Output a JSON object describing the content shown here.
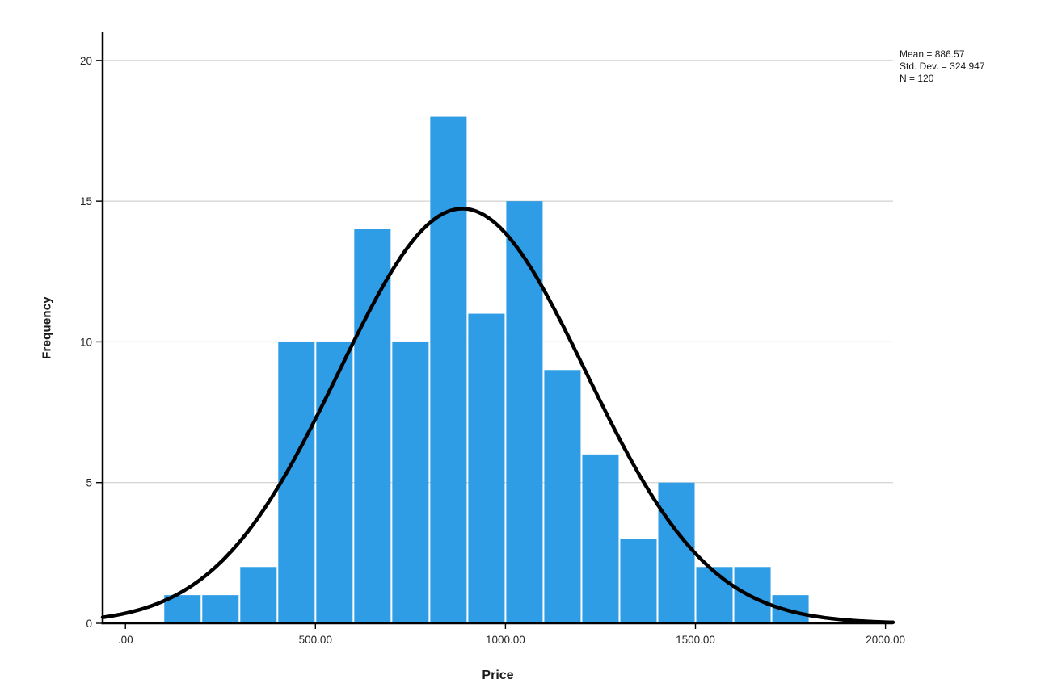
{
  "chart_data": {
    "type": "bar",
    "variant": "histogram-with-normal-curve",
    "title": "",
    "xlabel": "Price",
    "ylabel": "Frequency",
    "annotations": [
      "Mean = 886.57",
      "Std. Dev. = 324.947",
      "N = 120"
    ],
    "annotation_position": "top-right",
    "grid": "horizontal",
    "legend": "none",
    "bin_width": 100,
    "bins": [
      {
        "x0": 100,
        "x1": 200,
        "count": 1
      },
      {
        "x0": 200,
        "x1": 300,
        "count": 1
      },
      {
        "x0": 300,
        "x1": 400,
        "count": 2
      },
      {
        "x0": 400,
        "x1": 500,
        "count": 10
      },
      {
        "x0": 500,
        "x1": 600,
        "count": 10
      },
      {
        "x0": 600,
        "x1": 700,
        "count": 14
      },
      {
        "x0": 700,
        "x1": 800,
        "count": 10
      },
      {
        "x0": 800,
        "x1": 900,
        "count": 18
      },
      {
        "x0": 900,
        "x1": 1000,
        "count": 11
      },
      {
        "x0": 1000,
        "x1": 1100,
        "count": 15
      },
      {
        "x0": 1100,
        "x1": 1200,
        "count": 9
      },
      {
        "x0": 1200,
        "x1": 1300,
        "count": 6
      },
      {
        "x0": 1300,
        "x1": 1400,
        "count": 3
      },
      {
        "x0": 1400,
        "x1": 1500,
        "count": 5
      },
      {
        "x0": 1500,
        "x1": 1600,
        "count": 2
      },
      {
        "x0": 1600,
        "x1": 1700,
        "count": 2
      },
      {
        "x0": 1700,
        "x1": 1800,
        "count": 1
      }
    ],
    "normal_curve": {
      "mean": 886.57,
      "std_dev": 324.947,
      "n": 120
    },
    "x_ticks": [
      {
        "value": 0,
        "label": ".00"
      },
      {
        "value": 500,
        "label": "500.00"
      },
      {
        "value": 1000,
        "label": "1000.00"
      },
      {
        "value": 1500,
        "label": "1500.00"
      },
      {
        "value": 2000,
        "label": "2000.00"
      }
    ],
    "y_ticks": [
      {
        "value": 0,
        "label": "0"
      },
      {
        "value": 5,
        "label": "5"
      },
      {
        "value": 10,
        "label": "10"
      },
      {
        "value": 15,
        "label": "15"
      },
      {
        "value": 20,
        "label": "20"
      }
    ],
    "xlim": [
      -60,
      2020
    ],
    "ylim": [
      0,
      21
    ],
    "colors": {
      "bar": "#2E9DE6",
      "curve": "#000000",
      "grid": "#C9C9C9",
      "axis": "#000000",
      "background": "#FFFFFF"
    }
  }
}
